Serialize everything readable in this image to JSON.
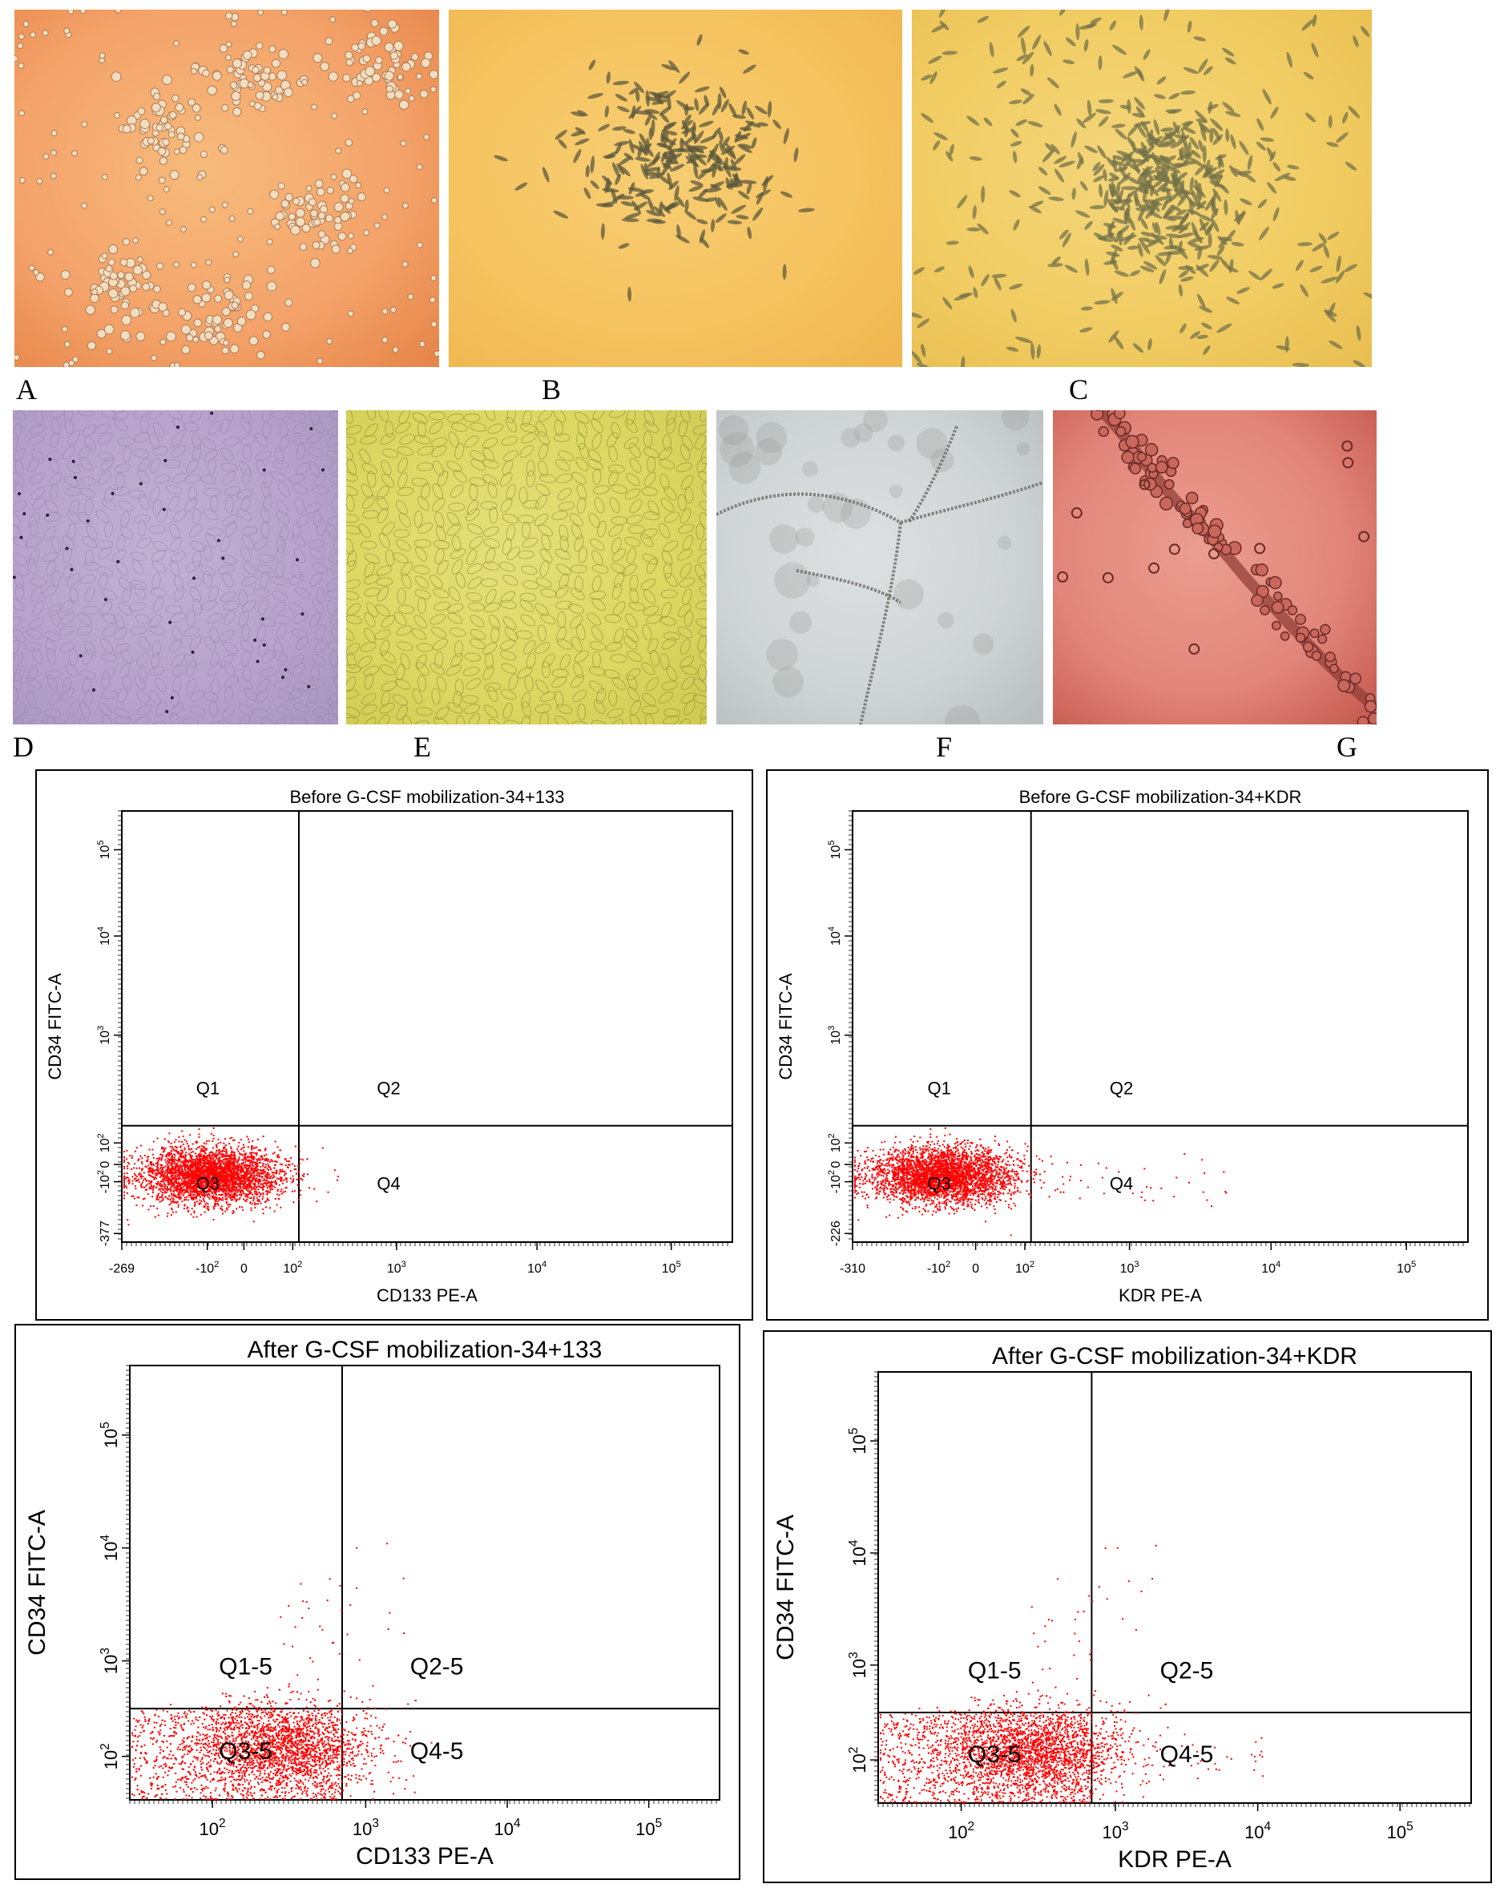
{
  "photo_panels": [
    {
      "label": "A",
      "colors": [
        "#f4a36a",
        "#e7864a",
        "#f7bb7c"
      ],
      "cell": "#f2ddc0",
      "style": "round"
    },
    {
      "label": "B",
      "colors": [
        "#f5c35f",
        "#f0b64f",
        "#f7cd73"
      ],
      "cell": "#5d5a3c",
      "style": "spindle"
    },
    {
      "label": "C",
      "colors": [
        "#f1cc62",
        "#e9bf52",
        "#f3d57a"
      ],
      "cell": "#76734a",
      "style": "spindle"
    },
    {
      "label": "D",
      "colors": [
        "#b7a3cb",
        "#a996bf",
        "#c2b1d3"
      ],
      "cell": "#9a86b0",
      "style": "cobble"
    },
    {
      "label": "E",
      "colors": [
        "#dcd862",
        "#cfca52",
        "#e3e07a"
      ],
      "cell": "#8d8a36",
      "style": "cobble"
    },
    {
      "label": "F",
      "colors": [
        "#cfd4d4",
        "#b9bfbf",
        "#dde0e0"
      ],
      "cell": "#6b6a64",
      "style": "network"
    },
    {
      "label": "G",
      "colors": [
        "#e2857a",
        "#c65a50",
        "#ea9d8f"
      ],
      "cell": "#6a2a26",
      "style": "tube"
    }
  ],
  "flow_plots": [
    {
      "title": "Before G-CSF mobilization-34+133",
      "ylabel": "CD34 FITC-A",
      "xlabel": "CD133 PE-A",
      "quadrants": [
        "Q1",
        "Q2",
        "Q3",
        "Q4"
      ],
      "x_ticks": [
        "-269",
        "-10",
        "0",
        "10",
        "10",
        "10",
        "10"
      ],
      "x_tick_exps": [
        "",
        "2",
        "",
        "2",
        "3",
        "4",
        "5"
      ],
      "y_ticks": [
        "-377",
        "-10",
        "0",
        "10",
        "10",
        "10",
        "10"
      ],
      "y_tick_exps": [
        "",
        "2",
        "",
        "2",
        "3",
        "4",
        "5"
      ],
      "events": "tight",
      "dot_color": "#ff0000"
    },
    {
      "title": "Before G-CSF mobilization-34+KDR",
      "ylabel": "CD34 FITC-A",
      "xlabel": "KDR PE-A",
      "quadrants": [
        "Q1",
        "Q2",
        "Q3",
        "Q4"
      ],
      "x_ticks": [
        "-310",
        "-10",
        "0",
        "10",
        "10",
        "10",
        "10"
      ],
      "x_tick_exps": [
        "",
        "2",
        "",
        "2",
        "3",
        "4",
        "5"
      ],
      "y_ticks": [
        "-226",
        "-10",
        "0",
        "10",
        "10",
        "10",
        "10"
      ],
      "y_tick_exps": [
        "",
        "2",
        "",
        "2",
        "3",
        "4",
        "5"
      ],
      "events": "tight-tail",
      "dot_color": "#ff0000"
    },
    {
      "title": "After G-CSF mobilization-34+133",
      "ylabel": "CD34 FITC-A",
      "xlabel": "CD133 PE-A",
      "quadrants": [
        "Q1-5",
        "Q2-5",
        "Q3-5",
        "Q4-5"
      ],
      "x_ticks": [
        "10",
        "10",
        "10",
        "10"
      ],
      "x_tick_exps": [
        "2",
        "3",
        "4",
        "5"
      ],
      "y_ticks": [
        "10",
        "10",
        "10",
        "10"
      ],
      "y_tick_exps": [
        "2",
        "3",
        "4",
        "5"
      ],
      "events": "spread",
      "dot_color": "#ff0000"
    },
    {
      "title": "After G-CSF mobilization-34+KDR",
      "ylabel": "CD34 FITC-A",
      "xlabel": "KDR PE-A",
      "quadrants": [
        "Q1-5",
        "Q2-5",
        "Q3-5",
        "Q4-5"
      ],
      "x_ticks": [
        "10",
        "10",
        "10",
        "10"
      ],
      "x_tick_exps": [
        "2",
        "3",
        "4",
        "5"
      ],
      "y_ticks": [
        "10",
        "10",
        "10",
        "10"
      ],
      "y_tick_exps": [
        "2",
        "3",
        "4",
        "5"
      ],
      "events": "spread-tail",
      "dot_color": "#ff0000"
    }
  ]
}
